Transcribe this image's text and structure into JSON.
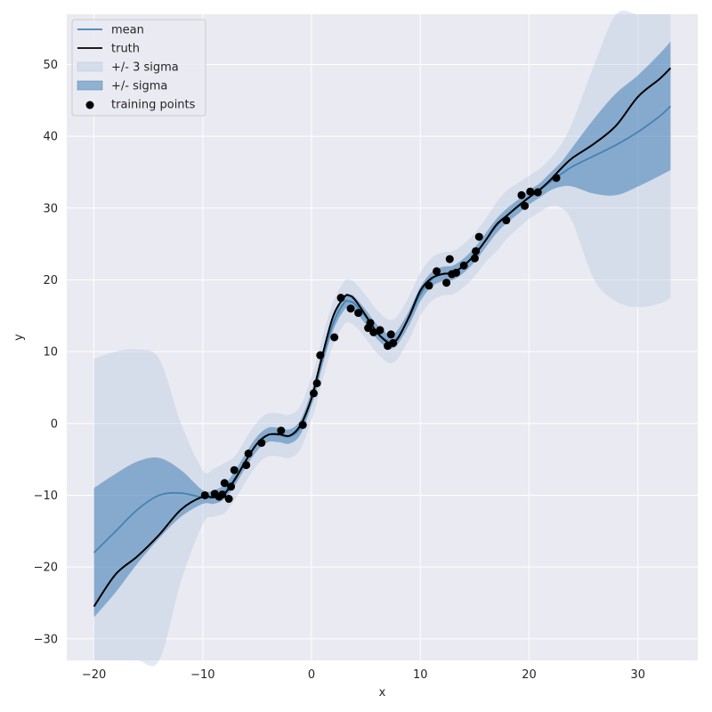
{
  "chart_data": {
    "type": "line",
    "title": "",
    "xlabel": "x",
    "ylabel": "y",
    "xlim": [
      -22.5,
      35.5
    ],
    "ylim": [
      -33,
      57
    ],
    "grid": true,
    "xticks": [
      -20,
      -10,
      0,
      10,
      20,
      30
    ],
    "yticks": [
      -30,
      -20,
      -10,
      0,
      10,
      20,
      30,
      40,
      50
    ],
    "tick_labels_x": [
      "−20",
      "−10",
      "0",
      "10",
      "20",
      "30"
    ],
    "tick_labels_y": [
      "−30",
      "−20",
      "−10",
      "0",
      "10",
      "20",
      "30",
      "40",
      "50"
    ],
    "legend_position": "top-left",
    "colors": {
      "mean": "#4682b4",
      "truth": "#000000",
      "band_sigma": "#4682b4",
      "band_3sigma": "#b0c4de",
      "points": "#000000",
      "background": "#eaeaf2",
      "grid": "#ffffff"
    },
    "legend": [
      {
        "label": "mean",
        "kind": "line",
        "color": "#4682b4"
      },
      {
        "label": "truth",
        "kind": "line",
        "color": "#000000"
      },
      {
        "label": "+/- 3 sigma",
        "kind": "patch",
        "color": "#b0c4de"
      },
      {
        "label": "+/- sigma",
        "kind": "patch",
        "color": "#4682b4"
      },
      {
        "label": "training points",
        "kind": "marker",
        "color": "#000000"
      }
    ],
    "series": [
      {
        "name": "mean",
        "x": [
          -20,
          -18,
          -16,
          -14,
          -12,
          -10,
          -9,
          -8,
          -7,
          -6,
          -5,
          -4,
          -3,
          -2,
          -1,
          0,
          0.5,
          1,
          2,
          3,
          3.5,
          4,
          5,
          6,
          7,
          7.5,
          8,
          9,
          10,
          11,
          12,
          13,
          14,
          15,
          16,
          17,
          18,
          19,
          20,
          21,
          22,
          23,
          24,
          26,
          28,
          30,
          32,
          33
        ],
        "y": [
          -18,
          -15,
          -12,
          -10,
          -9.7,
          -10.3,
          -10.3,
          -9.5,
          -7.5,
          -5,
          -2.8,
          -1.6,
          -1.6,
          -1.8,
          -0.5,
          3.5,
          6,
          9,
          14,
          16.8,
          17,
          16.6,
          14.8,
          12.8,
          11.5,
          11.5,
          12.2,
          14.8,
          18,
          20,
          20.8,
          21,
          22,
          23.5,
          25.5,
          27.5,
          29,
          30.2,
          31.5,
          32.5,
          33.7,
          34.8,
          35.8,
          37.3,
          38.8,
          40.6,
          42.8,
          44.2
        ]
      },
      {
        "name": "truth",
        "x": [
          -20,
          -18,
          -16,
          -14,
          -12,
          -10,
          -9,
          -8,
          -7,
          -6,
          -5,
          -4,
          -3,
          -2,
          -1,
          0,
          0.5,
          1,
          2,
          3,
          3.5,
          4,
          5,
          6,
          7,
          7.5,
          8,
          9,
          10,
          11,
          12,
          13,
          14,
          15,
          16,
          17,
          18,
          19,
          20,
          21,
          22,
          23,
          24,
          26,
          28,
          30,
          32,
          33
        ],
        "y": [
          -25.5,
          -21,
          -18.5,
          -15.5,
          -12,
          -10.2,
          -10.3,
          -9.8,
          -7.7,
          -5.1,
          -2.8,
          -1.6,
          -1.5,
          -1.7,
          -0.2,
          3.5,
          6.5,
          9.5,
          15,
          17.6,
          17.8,
          17.2,
          15,
          12.7,
          11.3,
          11.3,
          12,
          15,
          18.5,
          20.2,
          20.8,
          21,
          22,
          23.5,
          25.5,
          27.7,
          29,
          30.3,
          31.5,
          32.6,
          34,
          35.6,
          37,
          39,
          41.5,
          45.5,
          48,
          49.5
        ]
      }
    ],
    "bands": [
      {
        "name": "+/- sigma",
        "x": [
          -20,
          -18,
          -16,
          -14,
          -12,
          -10,
          -9,
          -8,
          -7,
          -6,
          -5,
          -4,
          -3,
          -2,
          -1,
          0,
          0.5,
          1,
          2,
          3,
          3.5,
          4,
          5,
          6,
          7,
          7.5,
          8,
          9,
          10,
          11,
          12,
          13,
          14,
          15,
          16,
          17,
          18,
          19,
          20,
          21,
          22,
          23,
          24,
          26,
          28,
          30,
          32,
          33
        ],
        "lower": [
          -27,
          -23.5,
          -19.5,
          -16,
          -13,
          -11.2,
          -11.2,
          -10.5,
          -8.5,
          -6,
          -3.8,
          -2.6,
          -2.6,
          -2.8,
          -1.5,
          2.5,
          5,
          8,
          13,
          15.8,
          16,
          15.6,
          13.8,
          11.8,
          10.5,
          10.5,
          11.2,
          13.8,
          17,
          19,
          19.8,
          20,
          21,
          22.5,
          24.5,
          26.5,
          28,
          29.2,
          30.5,
          31.5,
          32.5,
          33,
          33,
          32,
          31.8,
          33,
          34.5,
          35.3
        ],
        "upper": [
          -9,
          -7,
          -5.3,
          -4.8,
          -6.5,
          -9.3,
          -9.3,
          -8.5,
          -6.5,
          -4,
          -1.8,
          -0.6,
          -0.6,
          -0.8,
          0.5,
          4.5,
          7,
          10,
          15,
          17.8,
          18,
          17.6,
          15.8,
          13.8,
          12.5,
          12.5,
          13.2,
          15.8,
          19,
          21,
          21.8,
          22,
          23,
          24.5,
          26.5,
          28.5,
          30,
          31.2,
          32.5,
          33.5,
          35,
          36.5,
          38.5,
          42.5,
          46,
          48.5,
          51.5,
          53.2
        ]
      },
      {
        "name": "+/- 3 sigma",
        "x": [
          -20,
          -18,
          -16,
          -14,
          -12,
          -10,
          -9,
          -8,
          -7,
          -6,
          -5,
          -4,
          -3,
          -2,
          -1,
          0,
          0.5,
          1,
          2,
          3,
          3.5,
          4,
          5,
          6,
          7,
          7.5,
          8,
          9,
          10,
          11,
          12,
          13,
          14,
          15,
          16,
          17,
          18,
          19,
          20,
          21,
          22,
          23,
          24,
          26,
          28,
          30,
          32,
          33
        ],
        "lower": [
          -45,
          -40,
          -36,
          -34,
          -22,
          -14,
          -13,
          -12.5,
          -10.5,
          -8,
          -5.8,
          -4.6,
          -4.6,
          -4.8,
          -3.5,
          0.5,
          3,
          6,
          11,
          13.8,
          14,
          13.6,
          11.8,
          9.8,
          8.5,
          8.5,
          9.2,
          11.8,
          15,
          17,
          17.8,
          18,
          19,
          20.5,
          22.5,
          24,
          25.8,
          27.2,
          28.5,
          29.5,
          30.3,
          30,
          28,
          20,
          17,
          16.2,
          16.7,
          17.5
        ],
        "upper": [
          9,
          10,
          10.3,
          9,
          0,
          -6.5,
          -6.3,
          -5.5,
          -4.5,
          -2,
          0.2,
          1.4,
          1.4,
          1.2,
          2.5,
          6.5,
          9,
          12,
          17,
          19.8,
          20,
          19.6,
          17.8,
          15.8,
          14.5,
          14.5,
          15.2,
          17.8,
          21,
          23,
          23.8,
          24,
          25,
          26.5,
          28.5,
          30.8,
          32.5,
          33.5,
          34.5,
          35.5,
          37,
          39,
          42,
          50,
          60,
          65,
          68,
          70
        ]
      }
    ],
    "training_points": {
      "x": [
        -9.8,
        -8.9,
        -8.5,
        -8.2,
        -8.0,
        -7.6,
        -7.4,
        -7.1,
        -6.0,
        -5.8,
        -4.6,
        -2.8,
        -0.8,
        0.2,
        0.5,
        0.8,
        2.1,
        2.7,
        3.6,
        4.3,
        5.2,
        5.4,
        5.7,
        6.3,
        7.0,
        7.3,
        7.5,
        10.8,
        11.5,
        12.4,
        12.7,
        12.9,
        13.3,
        14.0,
        15.0,
        15.1,
        15.4,
        17.9,
        19.3,
        19.6,
        20.1,
        20.8,
        22.5
      ],
      "y": [
        -10,
        -9.8,
        -10.2,
        -9.9,
        -8.3,
        -10.5,
        -8.8,
        -6.5,
        -5.8,
        -4.2,
        -2.7,
        -1,
        -0.2,
        4.2,
        5.6,
        9.5,
        12,
        17.5,
        16,
        15.4,
        13.3,
        14,
        12.7,
        13,
        10.8,
        12.4,
        11.2,
        19.2,
        21.2,
        19.6,
        22.9,
        20.8,
        21,
        22,
        23,
        24,
        26,
        28.3,
        31.8,
        30.3,
        32.3,
        32.2,
        34.2
      ]
    }
  }
}
